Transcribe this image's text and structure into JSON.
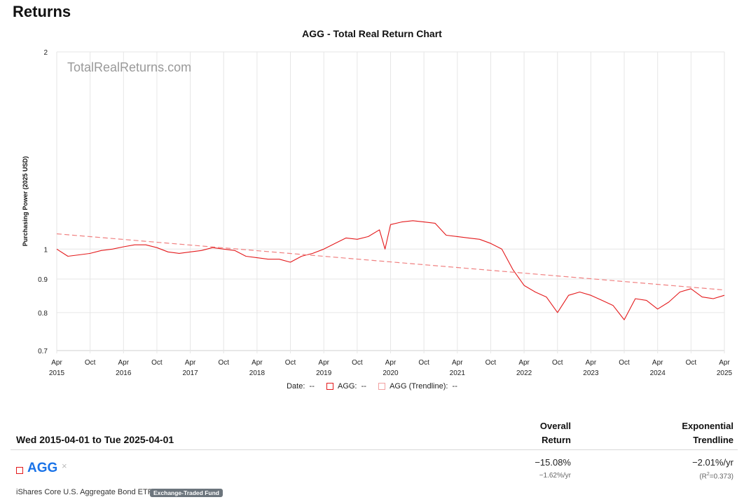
{
  "page": {
    "title": "Returns"
  },
  "chart_data": {
    "type": "line",
    "title": "AGG - Total Real Return Chart",
    "watermark": "TotalRealReturns.com",
    "ylabel": "Purchasing Power (2025 USD)",
    "yscale": "log",
    "ylim": [
      0.7,
      2
    ],
    "y_ticks": [
      "2",
      "1",
      "0.9",
      "0.8",
      "0.7"
    ],
    "y_tick_values": [
      2,
      1,
      0.9,
      0.8,
      0.7
    ],
    "x_ticks": [
      {
        "month": "Apr",
        "year": "2015"
      },
      {
        "month": "Oct",
        "year": ""
      },
      {
        "month": "Apr",
        "year": "2016"
      },
      {
        "month": "Oct",
        "year": ""
      },
      {
        "month": "Apr",
        "year": "2017"
      },
      {
        "month": "Oct",
        "year": ""
      },
      {
        "month": "Apr",
        "year": "2018"
      },
      {
        "month": "Oct",
        "year": ""
      },
      {
        "month": "Apr",
        "year": "2019"
      },
      {
        "month": "Oct",
        "year": ""
      },
      {
        "month": "Apr",
        "year": "2020"
      },
      {
        "month": "Oct",
        "year": ""
      },
      {
        "month": "Apr",
        "year": "2021"
      },
      {
        "month": "Oct",
        "year": ""
      },
      {
        "month": "Apr",
        "year": "2022"
      },
      {
        "month": "Oct",
        "year": ""
      },
      {
        "month": "Apr",
        "year": "2023"
      },
      {
        "month": "Oct",
        "year": ""
      },
      {
        "month": "Apr",
        "year": "2024"
      },
      {
        "month": "Oct",
        "year": ""
      },
      {
        "month": "Apr",
        "year": "2025"
      }
    ],
    "x_range": [
      "2015-04",
      "2025-04"
    ],
    "grid": true,
    "series": [
      {
        "name": "AGG",
        "color": "#e41a1c",
        "x": [
          "2015-04",
          "2015-06",
          "2015-08",
          "2015-10",
          "2015-12",
          "2016-02",
          "2016-04",
          "2016-06",
          "2016-08",
          "2016-10",
          "2016-12",
          "2017-02",
          "2017-04",
          "2017-06",
          "2017-08",
          "2017-10",
          "2017-12",
          "2018-02",
          "2018-04",
          "2018-06",
          "2018-08",
          "2018-10",
          "2018-12",
          "2019-02",
          "2019-04",
          "2019-06",
          "2019-08",
          "2019-10",
          "2019-12",
          "2020-02",
          "2020-03",
          "2020-04",
          "2020-06",
          "2020-08",
          "2020-10",
          "2020-12",
          "2021-02",
          "2021-04",
          "2021-06",
          "2021-08",
          "2021-10",
          "2021-12",
          "2022-02",
          "2022-04",
          "2022-06",
          "2022-08",
          "2022-10",
          "2022-12",
          "2023-02",
          "2023-04",
          "2023-06",
          "2023-08",
          "2023-10",
          "2023-12",
          "2024-02",
          "2024-04",
          "2024-06",
          "2024-08",
          "2024-10",
          "2024-12",
          "2025-02",
          "2025-04"
        ],
        "y": [
          1.0,
          0.975,
          0.98,
          0.985,
          0.995,
          1.0,
          1.008,
          1.015,
          1.015,
          1.005,
          0.99,
          0.985,
          0.99,
          0.995,
          1.005,
          1.0,
          0.995,
          0.975,
          0.97,
          0.965,
          0.965,
          0.955,
          0.975,
          0.985,
          1.0,
          1.02,
          1.04,
          1.035,
          1.045,
          1.07,
          1.0,
          1.09,
          1.1,
          1.105,
          1.1,
          1.095,
          1.05,
          1.045,
          1.04,
          1.035,
          1.02,
          1.0,
          0.93,
          0.88,
          0.86,
          0.845,
          0.8,
          0.85,
          0.86,
          0.85,
          0.835,
          0.82,
          0.78,
          0.84,
          0.835,
          0.81,
          0.83,
          0.86,
          0.87,
          0.845,
          0.84,
          0.85
        ]
      },
      {
        "name": "AGG (Trendline)",
        "color": "#f08080",
        "style": "dashed",
        "x": [
          "2015-04",
          "2025-04"
        ],
        "y": [
          1.055,
          0.866
        ]
      }
    ]
  },
  "legend": {
    "date_label": "Date:",
    "date_value": "--",
    "agg_label": "AGG:",
    "agg_value": "--",
    "trend_label": "AGG (Trendline):",
    "trend_value": "--"
  },
  "table": {
    "date_range": "Wed 2015-04-01 to Tue 2025-04-01",
    "col1_line1": "Overall",
    "col1_line2": "Return",
    "col2_line1": "Exponential",
    "col2_line2": "Trendline",
    "rows": [
      {
        "ticker": "AGG",
        "remove": "×",
        "name": "iShares Core U.S. Aggregate Bond ETF",
        "badge": "Exchange-Traded Fund",
        "overall": "−15.08%",
        "overall_sub": "−1.62%/yr",
        "trend": "−2.01%/yr",
        "trend_sub_prefix": "(R",
        "trend_sub_sup": "2",
        "trend_sub_suffix": "=0.373)"
      }
    ]
  }
}
